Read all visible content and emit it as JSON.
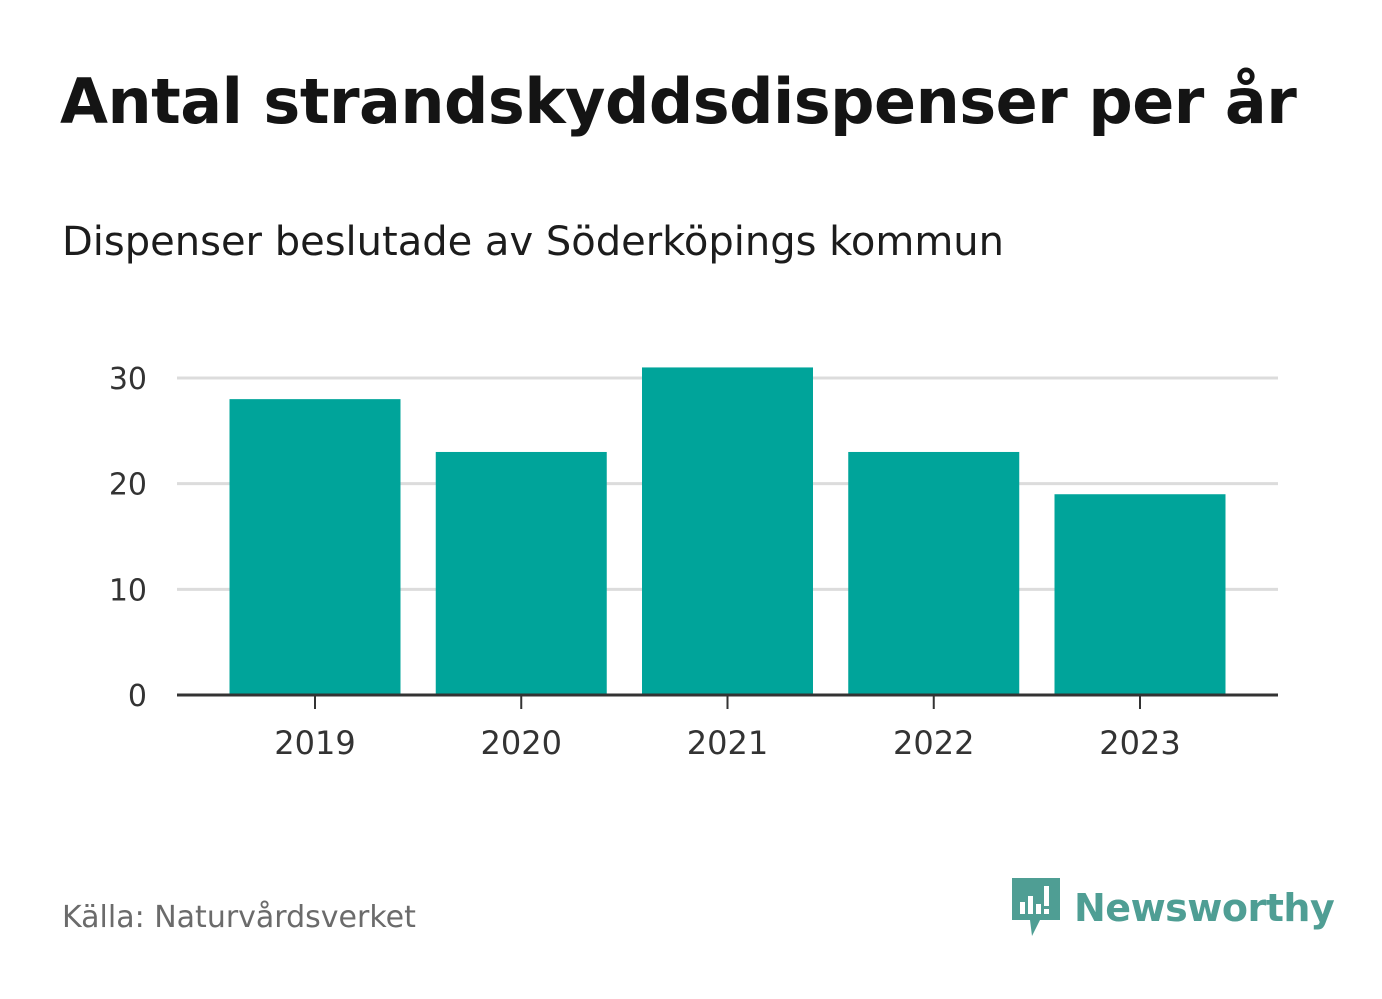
{
  "header": {
    "title": "Antal strandskyddsdispenser per år",
    "subtitle": "Dispenser beslutade av Söderköpings kommun"
  },
  "chart_data": {
    "type": "bar",
    "title": "Antal strandskyddsdispenser per år",
    "subtitle": "Dispenser beslutade av Söderköpings kommun",
    "categories": [
      "2019",
      "2020",
      "2021",
      "2022",
      "2023"
    ],
    "values": [
      28,
      23,
      31,
      23,
      19
    ],
    "xlabel": "",
    "ylabel": "",
    "ylim": [
      0,
      30
    ],
    "yticks": [
      0,
      10,
      20,
      30
    ],
    "grid": true,
    "bar_color": "#00a49a"
  },
  "footer": {
    "source": "Källa: Naturvårdsverket",
    "brand": "Newsworthy",
    "brand_icon": "newsworthy-logo-icon"
  },
  "colors": {
    "bar": "#00a49a",
    "grid": "#dcdcdc",
    "axis": "#333333",
    "brand": "#4f9e94"
  }
}
